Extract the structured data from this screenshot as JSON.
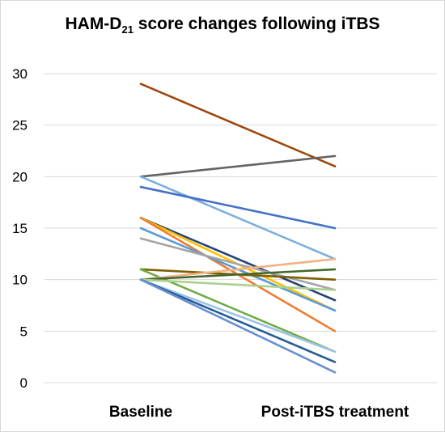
{
  "chart_data": {
    "type": "line",
    "title": "HAM-D",
    "title_subscript": "21",
    "title_rest": " score changes following iTBS",
    "categories": [
      "Baseline",
      "Post-iTBS treatment"
    ],
    "ylim": [
      0,
      30
    ],
    "yticks": [
      "0",
      "5",
      "10",
      "15",
      "20",
      "25",
      "30"
    ],
    "grid": true,
    "legend": "none",
    "series": [
      {
        "values": [
          29,
          21
        ],
        "color": "#9e480e"
      },
      {
        "values": [
          20,
          22
        ],
        "color": "#636363"
      },
      {
        "values": [
          20,
          12
        ],
        "color": "#7cafdd"
      },
      {
        "values": [
          19,
          15
        ],
        "color": "#4472c4"
      },
      {
        "values": [
          16,
          8
        ],
        "color": "#264478"
      },
      {
        "values": [
          16,
          7
        ],
        "color": "#ffc000"
      },
      {
        "values": [
          16,
          5
        ],
        "color": "#ed7d31"
      },
      {
        "values": [
          15,
          7
        ],
        "color": "#5b9bd5"
      },
      {
        "values": [
          14,
          9
        ],
        "color": "#a5a5a5"
      },
      {
        "values": [
          11,
          10
        ],
        "color": "#806000"
      },
      {
        "values": [
          11,
          3
        ],
        "color": "#70ad47"
      },
      {
        "values": [
          10,
          12
        ],
        "color": "#f4b183"
      },
      {
        "values": [
          10,
          11
        ],
        "color": "#43682b"
      },
      {
        "values": [
          10,
          9
        ],
        "color": "#a9d18e"
      },
      {
        "values": [
          10,
          3
        ],
        "color": "#9dc3e6"
      },
      {
        "values": [
          10,
          2
        ],
        "color": "#255e91"
      },
      {
        "values": [
          10,
          1
        ],
        "color": "#698ed0"
      }
    ]
  }
}
